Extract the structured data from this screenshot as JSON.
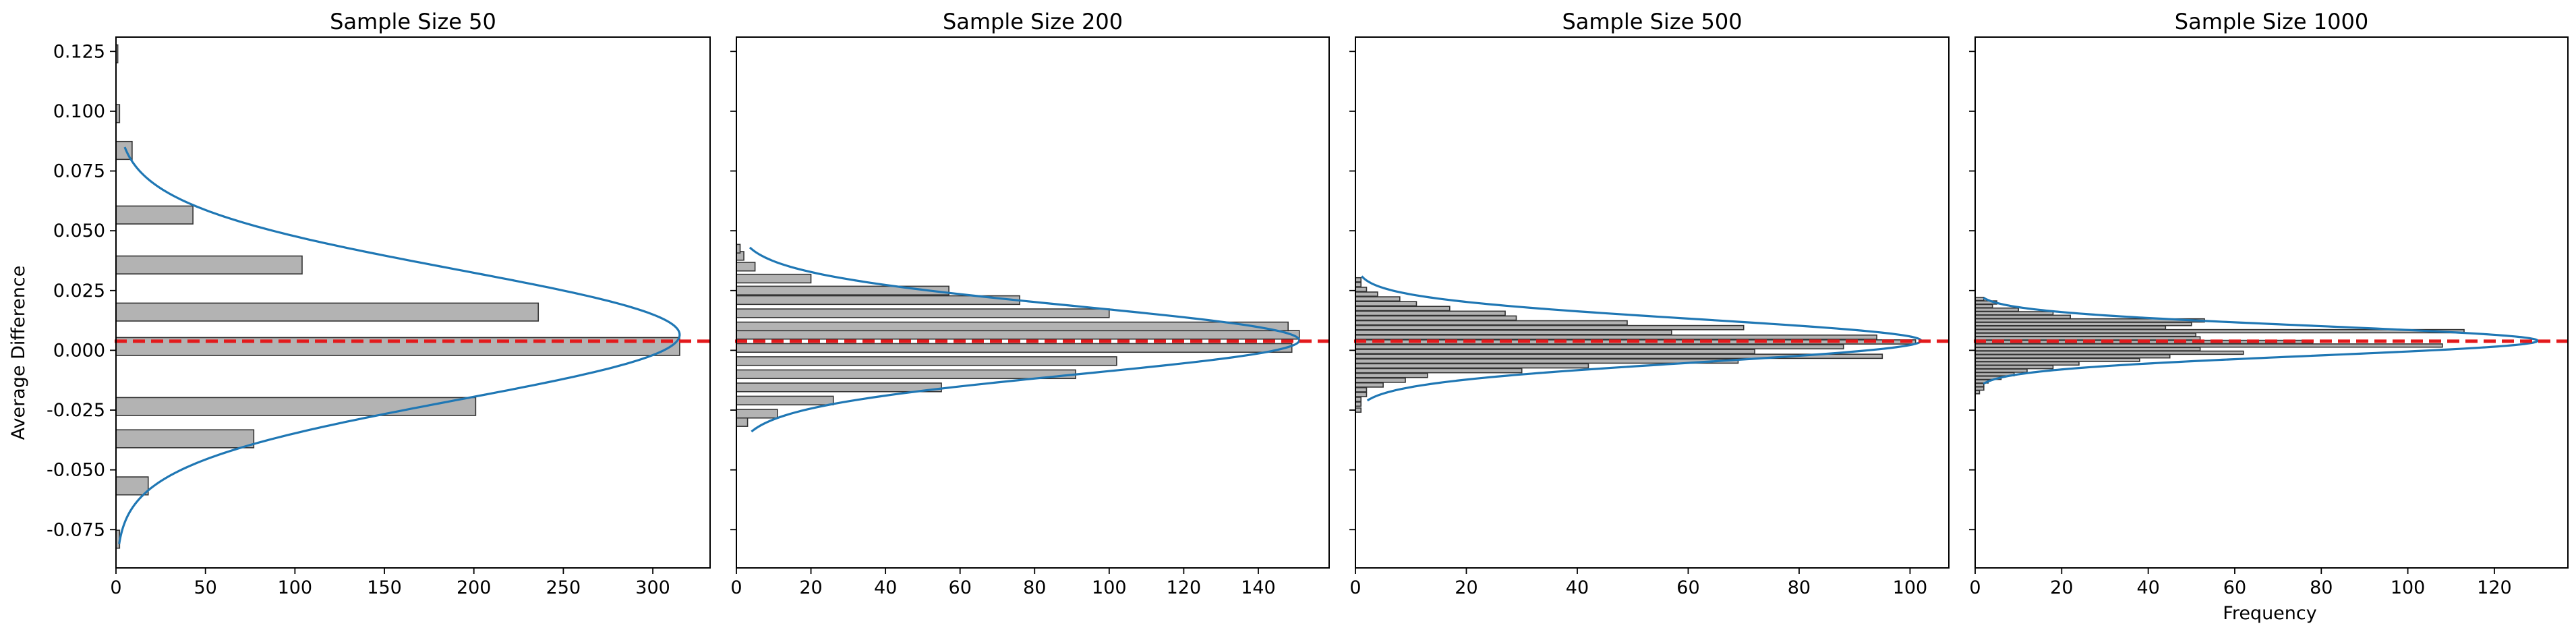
{
  "figure": {
    "ylabel": "Average Difference",
    "xlabel": "Frequency",
    "colors": {
      "bar_fill": "#b3b3b3",
      "bar_edge": "#333333",
      "curve": "#1f77b4",
      "mean_line": "#e31a1c",
      "axes": "#000000"
    }
  },
  "chart_data": [
    {
      "type": "bar",
      "orientation": "horizontal",
      "title": "Sample Size 50",
      "xlabel": "",
      "ylabel": "Average Difference",
      "xlim": [
        0,
        332
      ],
      "ylim": [
        -0.091,
        0.131
      ],
      "xticks": [
        0,
        50,
        100,
        150,
        200,
        250,
        300
      ],
      "yticks": [
        -0.075,
        -0.05,
        -0.025,
        0.0,
        0.025,
        0.05,
        0.075,
        0.1,
        0.125
      ],
      "bin_height": 0.0075,
      "bins": [
        {
          "y": -0.079,
          "count": 2
        },
        {
          "y": -0.0567,
          "count": 18
        },
        {
          "y": -0.037,
          "count": 77
        },
        {
          "y": -0.0235,
          "count": 201
        },
        {
          "y": 0.0016,
          "count": 315
        },
        {
          "y": 0.016,
          "count": 236
        },
        {
          "y": 0.0357,
          "count": 104
        },
        {
          "y": 0.0566,
          "count": 43
        },
        {
          "y": 0.0836,
          "count": 9
        },
        {
          "y": 0.099,
          "count": 2
        },
        {
          "y": 0.124,
          "count": 1
        }
      ],
      "curve": {
        "mean": 0.0065,
        "sd": 0.0272,
        "peak": 315,
        "y_range": [
          -0.081,
          0.085
        ]
      },
      "mean_line": 0.0038
    },
    {
      "type": "bar",
      "orientation": "horizontal",
      "title": "Sample Size 200",
      "xlabel": "",
      "ylabel": "",
      "xlim": [
        0,
        159
      ],
      "ylim": [
        -0.091,
        0.131
      ],
      "xticks": [
        0,
        20,
        40,
        60,
        80,
        100,
        120,
        140
      ],
      "yticks": [
        -0.075,
        -0.05,
        -0.025,
        0.0,
        0.025,
        0.05,
        0.075,
        0.1,
        0.125
      ],
      "bin_height": 0.0036,
      "bins": [
        {
          "y": -0.03,
          "count": 3
        },
        {
          "y": -0.0265,
          "count": 11
        },
        {
          "y": -0.021,
          "count": 26
        },
        {
          "y": -0.0155,
          "count": 55
        },
        {
          "y": -0.01,
          "count": 91
        },
        {
          "y": -0.0045,
          "count": 102
        },
        {
          "y": 0.001,
          "count": 149
        },
        {
          "y": 0.0065,
          "count": 151
        },
        {
          "y": 0.01,
          "count": 148
        },
        {
          "y": 0.0155,
          "count": 100
        },
        {
          "y": 0.021,
          "count": 76
        },
        {
          "y": 0.025,
          "count": 57
        },
        {
          "y": 0.03,
          "count": 20
        },
        {
          "y": 0.035,
          "count": 5
        },
        {
          "y": 0.0395,
          "count": 2
        },
        {
          "y": 0.0425,
          "count": 1
        }
      ],
      "curve": {
        "mean": 0.0042,
        "sd": 0.0142,
        "peak": 151,
        "y_range": [
          -0.034,
          0.043
        ]
      },
      "mean_line": 0.0038
    },
    {
      "type": "bar",
      "orientation": "horizontal",
      "title": "Sample Size 500",
      "xlabel": "",
      "ylabel": "",
      "xlim": [
        0,
        107
      ],
      "ylim": [
        -0.091,
        0.131
      ],
      "xticks": [
        0,
        20,
        40,
        60,
        80,
        100
      ],
      "yticks": [
        -0.075,
        -0.05,
        -0.025,
        0.0,
        0.025,
        0.05,
        0.075,
        0.1,
        0.125
      ],
      "bin_height": 0.00175,
      "bins": [
        {
          "y": -0.025,
          "count": 1
        },
        {
          "y": -0.0225,
          "count": 1
        },
        {
          "y": -0.0205,
          "count": 1
        },
        {
          "y": -0.0185,
          "count": 2
        },
        {
          "y": -0.0165,
          "count": 2
        },
        {
          "y": -0.0145,
          "count": 5
        },
        {
          "y": -0.0125,
          "count": 9
        },
        {
          "y": -0.0105,
          "count": 13
        },
        {
          "y": -0.0085,
          "count": 30
        },
        {
          "y": -0.0065,
          "count": 42
        },
        {
          "y": -0.0045,
          "count": 69
        },
        {
          "y": -0.0025,
          "count": 95
        },
        {
          "y": -0.0005,
          "count": 72
        },
        {
          "y": 0.0015,
          "count": 88
        },
        {
          "y": 0.0035,
          "count": 101
        },
        {
          "y": 0.0055,
          "count": 94
        },
        {
          "y": 0.0075,
          "count": 57
        },
        {
          "y": 0.0095,
          "count": 70
        },
        {
          "y": 0.0115,
          "count": 49
        },
        {
          "y": 0.0135,
          "count": 29
        },
        {
          "y": 0.0155,
          "count": 27
        },
        {
          "y": 0.0175,
          "count": 17
        },
        {
          "y": 0.0195,
          "count": 11
        },
        {
          "y": 0.0215,
          "count": 8
        },
        {
          "y": 0.0235,
          "count": 4
        },
        {
          "y": 0.0255,
          "count": 2
        },
        {
          "y": 0.0275,
          "count": 1
        },
        {
          "y": 0.0295,
          "count": 1
        }
      ],
      "curve": {
        "mean": 0.004,
        "sd": 0.009,
        "peak": 102,
        "y_range": [
          -0.021,
          0.031
        ]
      },
      "mean_line": 0.0038
    },
    {
      "type": "bar",
      "orientation": "horizontal",
      "title": "Sample Size 1000",
      "xlabel": "Frequency",
      "ylabel": "",
      "xlim": [
        0,
        137
      ],
      "ylim": [
        -0.091,
        0.131
      ],
      "xticks": [
        0,
        20,
        40,
        60,
        80,
        100,
        120
      ],
      "yticks": [
        -0.075,
        -0.05,
        -0.025,
        0.0,
        0.025,
        0.05,
        0.075,
        0.1,
        0.125
      ],
      "bin_height": 0.00135,
      "bins": [
        {
          "y": -0.0175,
          "count": 1
        },
        {
          "y": -0.016,
          "count": 2
        },
        {
          "y": -0.0145,
          "count": 2
        },
        {
          "y": -0.013,
          "count": 3
        },
        {
          "y": -0.0115,
          "count": 6
        },
        {
          "y": -0.01,
          "count": 9
        },
        {
          "y": -0.0085,
          "count": 12
        },
        {
          "y": -0.007,
          "count": 18
        },
        {
          "y": -0.0055,
          "count": 24
        },
        {
          "y": -0.004,
          "count": 38
        },
        {
          "y": -0.0025,
          "count": 45
        },
        {
          "y": -0.001,
          "count": 62
        },
        {
          "y": 0.0005,
          "count": 52
        },
        {
          "y": 0.002,
          "count": 108
        },
        {
          "y": 0.0035,
          "count": 78
        },
        {
          "y": 0.005,
          "count": 52
        },
        {
          "y": 0.0065,
          "count": 51
        },
        {
          "y": 0.008,
          "count": 113
        },
        {
          "y": 0.0095,
          "count": 44
        },
        {
          "y": 0.011,
          "count": 50
        },
        {
          "y": 0.0125,
          "count": 53
        },
        {
          "y": 0.014,
          "count": 22
        },
        {
          "y": 0.0155,
          "count": 18
        },
        {
          "y": 0.017,
          "count": 10
        },
        {
          "y": 0.0185,
          "count": 4
        },
        {
          "y": 0.02,
          "count": 5
        },
        {
          "y": 0.0215,
          "count": 2
        }
      ],
      "curve": {
        "mean": 0.004,
        "sd": 0.0062,
        "peak": 130,
        "y_range": [
          -0.014,
          0.022
        ]
      },
      "mean_line": 0.0038
    }
  ]
}
